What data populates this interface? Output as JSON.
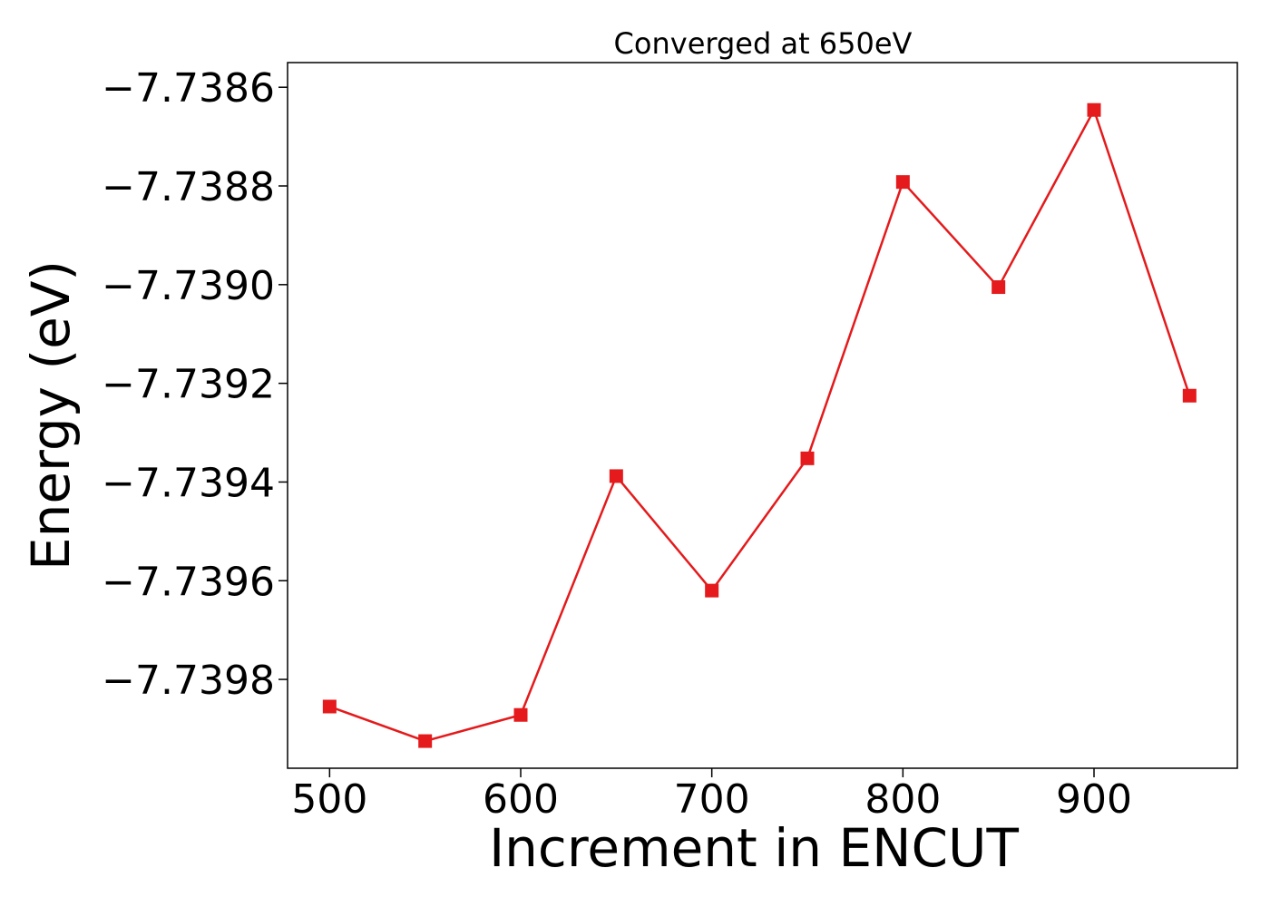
{
  "chart_data": {
    "type": "line",
    "title": "Converged at 650eV",
    "xlabel": "Increment in ENCUT",
    "ylabel": "Energy (eV)",
    "x": [
      500,
      550,
      600,
      650,
      700,
      750,
      800,
      850,
      900,
      950
    ],
    "series": [
      {
        "values": [
          -7.739855,
          -7.739925,
          -7.739872,
          -7.739388,
          -7.73962,
          -7.739352,
          -7.738792,
          -7.739005,
          -7.738646,
          -7.739225
        ],
        "color": "#e41a1c",
        "marker": "square"
      }
    ],
    "xlim": [
      478,
      975
    ],
    "ylim": [
      -7.73998,
      -7.73855
    ],
    "xticks": [
      500,
      600,
      700,
      800,
      900
    ],
    "xtick_labels": [
      "500",
      "600",
      "700",
      "800",
      "900"
    ],
    "yticks": [
      -7.7386,
      -7.7388,
      -7.739,
      -7.7392,
      -7.7394,
      -7.7396,
      -7.7398
    ],
    "ytick_labels": [
      "−7.7386",
      "−7.7388",
      "−7.7390",
      "−7.7392",
      "−7.7394",
      "−7.7396",
      "−7.7398"
    ],
    "grid": false,
    "legend": "none"
  }
}
